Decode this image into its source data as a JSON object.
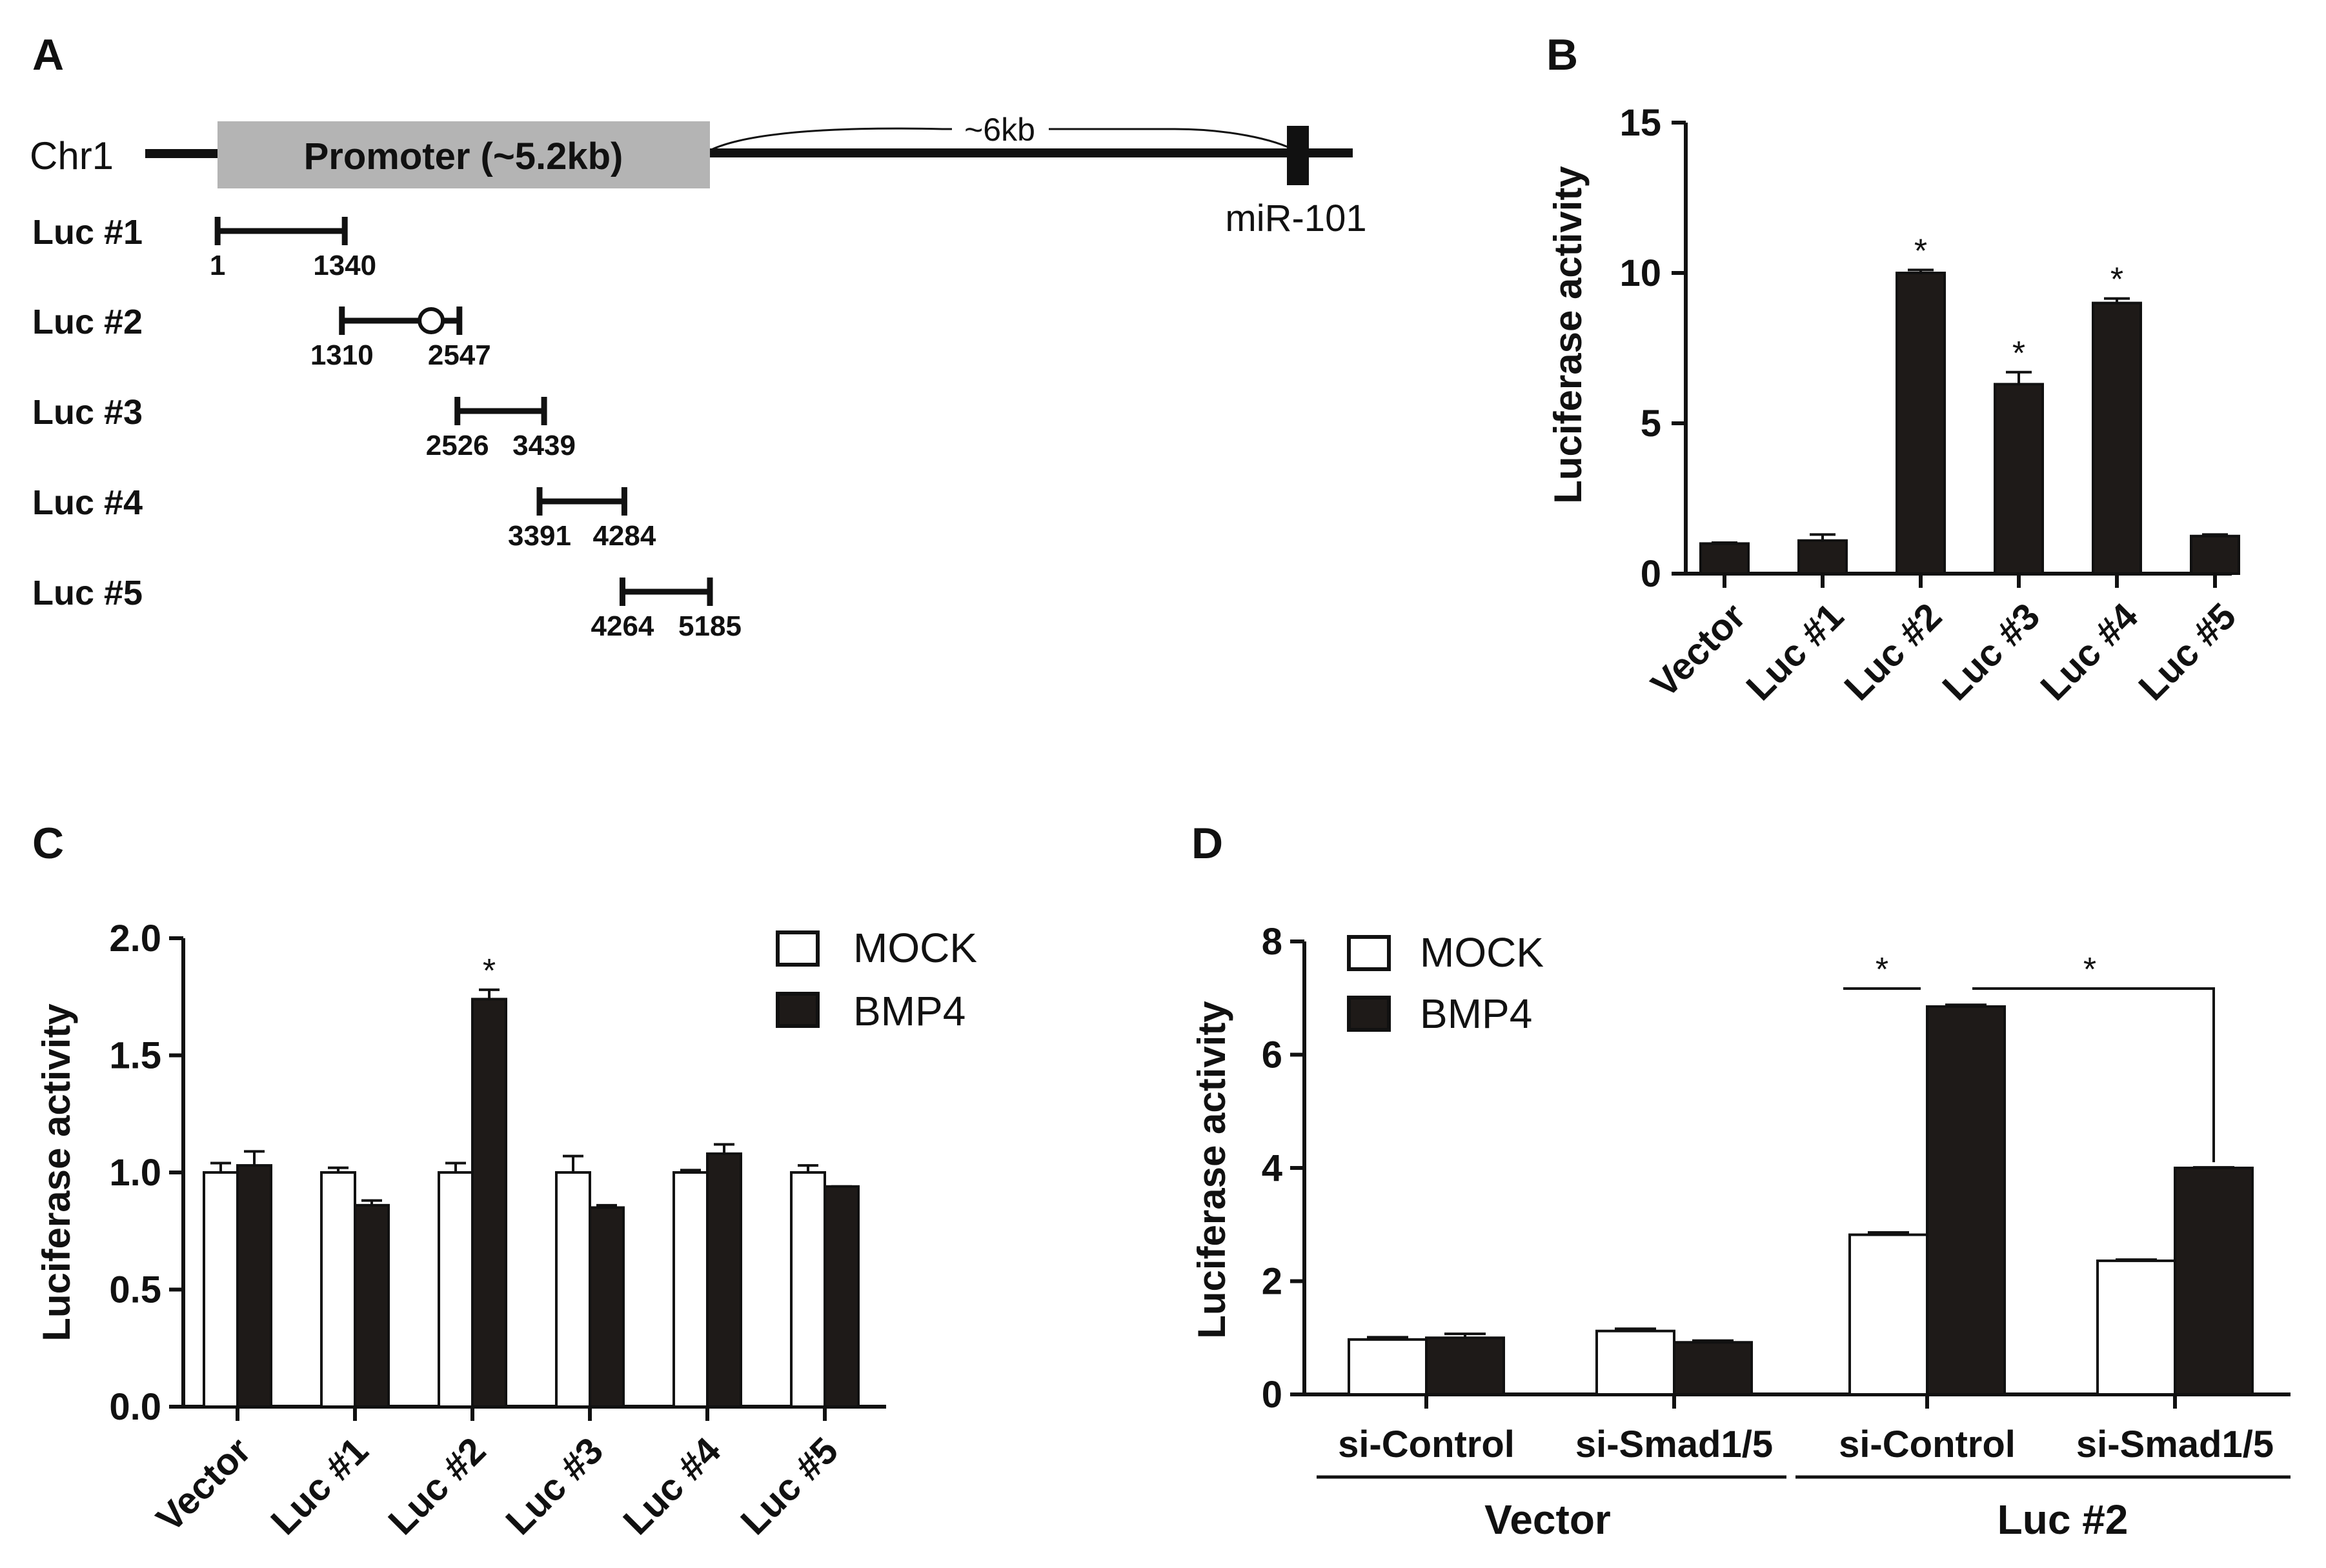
{
  "panels": {
    "A": {
      "label": "A",
      "chromosome": "Chr1",
      "promoter_label": "Promoter (~5.2kb)",
      "distance_label": "~6kb",
      "mirna_label": "miR-101",
      "constructs": [
        {
          "name": "Luc #1",
          "start": 1,
          "end": 1340,
          "start_label": "1",
          "end_label": "1340",
          "site": null
        },
        {
          "name": "Luc #2",
          "start": 1310,
          "end": 2547,
          "start_label": "1310",
          "end_label": "2547",
          "site": 2250
        },
        {
          "name": "Luc #3",
          "start": 2526,
          "end": 3439,
          "start_label": "2526",
          "end_label": "3439",
          "site": null
        },
        {
          "name": "Luc #4",
          "start": 3391,
          "end": 4284,
          "start_label": "3391",
          "end_label": "4284",
          "site": null
        },
        {
          "name": "Luc #5",
          "start": 4264,
          "end": 5185,
          "start_label": "4264",
          "end_label": "5185",
          "site": null
        }
      ],
      "colors": {
        "promoter": "#b4b4b4",
        "line": "#111111"
      }
    },
    "B": {
      "label": "B"
    },
    "C": {
      "label": "C"
    },
    "D": {
      "label": "D"
    }
  },
  "chart_data": [
    {
      "panel": "B",
      "type": "bar",
      "ylabel": "Luciferase activity",
      "ylim": [
        0,
        15
      ],
      "yticks": [
        0,
        5,
        10,
        15
      ],
      "categories": [
        "Vector",
        "Luc #1",
        "Luc #2",
        "Luc #3",
        "Luc #4",
        "Luc #5"
      ],
      "series": [
        {
          "name": "Luciferase activity",
          "color": "#1e1a18",
          "values": [
            1.0,
            1.1,
            10.0,
            6.3,
            9.0,
            1.25
          ],
          "errors": [
            0.03,
            0.2,
            0.1,
            0.4,
            0.15,
            0.05
          ],
          "significance": [
            "",
            "",
            "*",
            "*",
            "*",
            ""
          ]
        }
      ]
    },
    {
      "panel": "C",
      "type": "bar",
      "ylabel": "Luciferase activity",
      "ylim": [
        0,
        2.0
      ],
      "yticks": [
        "0.0",
        "0.5",
        "1.0",
        "1.5",
        "2.0"
      ],
      "categories": [
        "Vector",
        "Luc #1",
        "Luc #2",
        "Luc #3",
        "Luc #4",
        "Luc #5"
      ],
      "series": [
        {
          "name": "MOCK",
          "color": "#ffffff",
          "values": [
            1.0,
            1.0,
            1.0,
            1.0,
            1.0,
            1.0
          ],
          "errors": [
            0.04,
            0.02,
            0.04,
            0.07,
            0.01,
            0.03
          ]
        },
        {
          "name": "BMP4",
          "color": "#1e1a18",
          "values": [
            1.03,
            0.86,
            1.74,
            0.85,
            1.08,
            0.94
          ],
          "errors": [
            0.06,
            0.02,
            0.04,
            0.01,
            0.04,
            0.0
          ]
        }
      ],
      "significance": [
        {
          "category": "Luc #2",
          "series": "BMP4",
          "text": "*"
        }
      ],
      "legend": "top-right"
    },
    {
      "panel": "D",
      "type": "bar",
      "ylabel": "Luciferase activity",
      "ylim": [
        0,
        8
      ],
      "yticks": [
        0,
        2,
        4,
        6,
        8
      ],
      "categories": [
        "si-Control",
        "si-Smad1/5",
        "si-Control",
        "si-Smad1/5"
      ],
      "groups": [
        {
          "label": "Vector",
          "categories": [
            0,
            1
          ]
        },
        {
          "label": "Luc #2",
          "categories": [
            2,
            3
          ]
        }
      ],
      "series": [
        {
          "name": "MOCK",
          "color": "#ffffff",
          "values": [
            0.97,
            1.12,
            2.82,
            2.36
          ],
          "errors": [
            0.04,
            0.04,
            0.04,
            0.02
          ]
        },
        {
          "name": "BMP4",
          "color": "#1e1a18",
          "values": [
            1.0,
            0.92,
            6.85,
            4.0
          ],
          "errors": [
            0.07,
            0.03,
            0.03,
            0.01
          ]
        }
      ],
      "significance": [
        {
          "from": [
            2,
            "MOCK"
          ],
          "to": [
            2,
            "BMP4"
          ],
          "text": "*"
        },
        {
          "from": [
            2,
            "BMP4"
          ],
          "to": [
            3,
            "BMP4"
          ],
          "text": "*"
        }
      ],
      "legend": "top-left"
    }
  ]
}
